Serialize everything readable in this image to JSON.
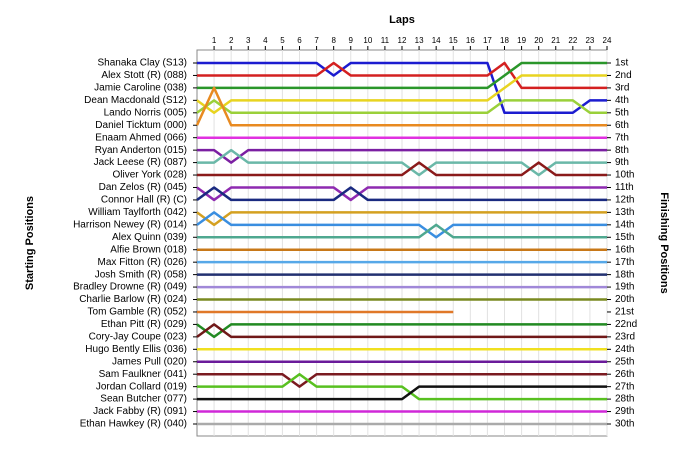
{
  "chart_data": {
    "type": "line",
    "title": "Laps",
    "ylabel": "Starting Positions",
    "y2label": "Finishing Positions",
    "x": [
      0,
      1,
      2,
      3,
      4,
      5,
      6,
      7,
      8,
      9,
      10,
      11,
      12,
      13,
      14,
      15,
      16,
      17,
      18,
      19,
      20,
      21,
      22,
      23,
      24
    ],
    "xlim": [
      0,
      24
    ],
    "xticks": [
      1,
      2,
      3,
      4,
      5,
      6,
      7,
      8,
      9,
      10,
      11,
      12,
      13,
      14,
      15,
      16,
      17,
      18,
      19,
      20,
      21,
      22,
      23,
      24
    ],
    "ylim": [
      1,
      30
    ],
    "reverse_y": true,
    "grid": true,
    "yticks": [
      {
        "value": 1,
        "label": "1st"
      },
      {
        "value": 2,
        "label": "2nd"
      },
      {
        "value": 3,
        "label": "3rd"
      },
      {
        "value": 4,
        "label": "4th"
      },
      {
        "value": 5,
        "label": "5th"
      },
      {
        "value": 6,
        "label": "6th"
      },
      {
        "value": 7,
        "label": "7th"
      },
      {
        "value": 8,
        "label": "8th"
      },
      {
        "value": 9,
        "label": "9th"
      },
      {
        "value": 10,
        "label": "10th"
      },
      {
        "value": 11,
        "label": "11th"
      },
      {
        "value": 12,
        "label": "12th"
      },
      {
        "value": 13,
        "label": "13th"
      },
      {
        "value": 14,
        "label": "14th"
      },
      {
        "value": 15,
        "label": "15th"
      },
      {
        "value": 16,
        "label": "16th"
      },
      {
        "value": 17,
        "label": "17th"
      },
      {
        "value": 18,
        "label": "18th"
      },
      {
        "value": 19,
        "label": "19th"
      },
      {
        "value": 20,
        "label": "20th"
      },
      {
        "value": 21,
        "label": "21st"
      },
      {
        "value": 22,
        "label": "22nd"
      },
      {
        "value": 23,
        "label": "23rd"
      },
      {
        "value": 24,
        "label": "24th"
      },
      {
        "value": 25,
        "label": "25th"
      },
      {
        "value": 26,
        "label": "26th"
      },
      {
        "value": 27,
        "label": "27th"
      },
      {
        "value": 28,
        "label": "28th"
      },
      {
        "value": 29,
        "label": "29th"
      },
      {
        "value": 30,
        "label": "30th"
      }
    ],
    "series": [
      {
        "name": "Shanaka Clay (S13)",
        "color": "#1c1cd0",
        "values": [
          1,
          1,
          1,
          1,
          1,
          1,
          1,
          1,
          2,
          1,
          1,
          1,
          1,
          1,
          1,
          1,
          1,
          1,
          5,
          5,
          5,
          5,
          5,
          4,
          4
        ]
      },
      {
        "name": "Alex Stott (R) (088)",
        "color": "#d42020",
        "values": [
          2,
          2,
          2,
          2,
          2,
          2,
          2,
          2,
          1,
          2,
          2,
          2,
          2,
          2,
          2,
          2,
          2,
          2,
          1,
          3,
          3,
          3,
          3,
          3,
          3
        ]
      },
      {
        "name": "Jamie Caroline (038)",
        "color": "#2a962a",
        "values": [
          3,
          3,
          3,
          3,
          3,
          3,
          3,
          3,
          3,
          3,
          3,
          3,
          3,
          3,
          3,
          3,
          3,
          3,
          2,
          1,
          1,
          1,
          1,
          1,
          1
        ]
      },
      {
        "name": "Dean Macdonald (S12)",
        "color": "#e8d420",
        "values": [
          4,
          5,
          4,
          4,
          4,
          4,
          4,
          4,
          4,
          4,
          4,
          4,
          4,
          4,
          4,
          4,
          4,
          4,
          3,
          2,
          2,
          2,
          2,
          2,
          2
        ]
      },
      {
        "name": "Lando Norris (005)",
        "color": "#9ad03a",
        "values": [
          5,
          4,
          5,
          5,
          5,
          5,
          5,
          5,
          5,
          5,
          5,
          5,
          5,
          5,
          5,
          5,
          5,
          5,
          4,
          4,
          4,
          4,
          4,
          5,
          5
        ]
      },
      {
        "name": "Daniel Ticktum (000)",
        "color": "#e88a20",
        "values": [
          6,
          3,
          6,
          6,
          6,
          6,
          6,
          6,
          6,
          6,
          6,
          6,
          6,
          6,
          6,
          6,
          6,
          6,
          6,
          6,
          6,
          6,
          6,
          6,
          6
        ]
      },
      {
        "name": "Enaam Ahmed (066)",
        "color": "#e030e0",
        "values": [
          7,
          7,
          7,
          7,
          7,
          7,
          7,
          7,
          7,
          7,
          7,
          7,
          7,
          7,
          7,
          7,
          7,
          7,
          7,
          7,
          7,
          7,
          7,
          7,
          7
        ]
      },
      {
        "name": "Ryan Anderton (015)",
        "color": "#7b1fa2",
        "values": [
          8,
          8,
          9,
          8,
          8,
          8,
          8,
          8,
          8,
          8,
          8,
          8,
          8,
          8,
          8,
          8,
          8,
          8,
          8,
          8,
          8,
          8,
          8,
          8,
          8
        ]
      },
      {
        "name": "Jack Leese (R) (087)",
        "color": "#6ab8a8",
        "values": [
          9,
          9,
          8,
          9,
          9,
          9,
          9,
          9,
          9,
          9,
          9,
          9,
          9,
          10,
          9,
          9,
          9,
          9,
          9,
          9,
          10,
          9,
          9,
          9,
          9
        ]
      },
      {
        "name": "Oliver York (028)",
        "color": "#8a1a1a",
        "values": [
          10,
          10,
          10,
          10,
          10,
          10,
          10,
          10,
          10,
          10,
          10,
          10,
          10,
          9,
          10,
          10,
          10,
          10,
          10,
          10,
          9,
          10,
          10,
          10,
          10
        ]
      },
      {
        "name": "Dan Zelos (R) (045)",
        "color": "#8e2ab0",
        "values": [
          11,
          12,
          11,
          11,
          11,
          11,
          11,
          11,
          11,
          12,
          11,
          11,
          11,
          11,
          11,
          11,
          11,
          11,
          11,
          11,
          11,
          11,
          11,
          11,
          11
        ]
      },
      {
        "name": "Connor Hall (R) (C)",
        "color": "#1a2a80",
        "values": [
          12,
          11,
          12,
          12,
          12,
          12,
          12,
          12,
          12,
          11,
          12,
          12,
          12,
          12,
          12,
          12,
          12,
          12,
          12,
          12,
          12,
          12,
          12,
          12,
          12
        ]
      },
      {
        "name": "William Taylforth (042)",
        "color": "#d4a020",
        "values": [
          13,
          14,
          13,
          13,
          13,
          13,
          13,
          13,
          13,
          13,
          13,
          13,
          13,
          13,
          13,
          13,
          13,
          13,
          13,
          13,
          13,
          13,
          13,
          13,
          13
        ]
      },
      {
        "name": "Harrison Newey (R) (014)",
        "color": "#3a8ee0",
        "values": [
          14,
          13,
          14,
          14,
          14,
          14,
          14,
          14,
          14,
          14,
          14,
          14,
          14,
          14,
          15,
          14,
          14,
          14,
          14,
          14,
          14,
          14,
          14,
          14,
          14
        ]
      },
      {
        "name": "Alex Quinn (039)",
        "color": "#4fa890",
        "values": [
          15,
          15,
          15,
          15,
          15,
          15,
          15,
          15,
          15,
          15,
          15,
          15,
          15,
          15,
          14,
          15,
          15,
          15,
          15,
          15,
          15,
          15,
          15,
          15,
          15
        ]
      },
      {
        "name": "Alfie Brown (018)",
        "color": "#c87818",
        "values": [
          16,
          16,
          16,
          16,
          16,
          16,
          16,
          16,
          16,
          16,
          16,
          16,
          16,
          16,
          16,
          16,
          16,
          16,
          16,
          16,
          16,
          16,
          16,
          16,
          16
        ]
      },
      {
        "name": "Max Fitton (R) (026)",
        "color": "#56a8e8",
        "values": [
          17,
          17,
          17,
          17,
          17,
          17,
          17,
          17,
          17,
          17,
          17,
          17,
          17,
          17,
          17,
          17,
          17,
          17,
          17,
          17,
          17,
          17,
          17,
          17,
          17
        ]
      },
      {
        "name": "Josh Smith (R) (058)",
        "color": "#223070",
        "values": [
          18,
          18,
          18,
          18,
          18,
          18,
          18,
          18,
          18,
          18,
          18,
          18,
          18,
          18,
          18,
          18,
          18,
          18,
          18,
          18,
          18,
          18,
          18,
          18,
          18
        ]
      },
      {
        "name": "Bradley Drowne (R) (049)",
        "color": "#a088d8",
        "values": [
          19,
          19,
          19,
          19,
          19,
          19,
          19,
          19,
          19,
          19,
          19,
          19,
          19,
          19,
          19,
          19,
          19,
          19,
          19,
          19,
          19,
          19,
          19,
          19,
          19
        ]
      },
      {
        "name": "Charlie Barlow (R) (024)",
        "color": "#7a8a20",
        "values": [
          20,
          20,
          20,
          20,
          20,
          20,
          20,
          20,
          20,
          20,
          20,
          20,
          20,
          20,
          20,
          20,
          20,
          20,
          20,
          20,
          20,
          20,
          20,
          20,
          20
        ]
      },
      {
        "name": "Tom Gamble (R) (052)",
        "color": "#e07828",
        "values": [
          21,
          21,
          21,
          21,
          21,
          21,
          21,
          21,
          21,
          21,
          21,
          21,
          21,
          21,
          21,
          21,
          null,
          null,
          null,
          null,
          null,
          null,
          null,
          null,
          null
        ]
      },
      {
        "name": "Ethan Pitt  (R) (029)",
        "color": "#228a22",
        "values": [
          22,
          23,
          22,
          22,
          22,
          22,
          22,
          22,
          22,
          22,
          22,
          22,
          22,
          22,
          22,
          22,
          22,
          22,
          22,
          22,
          22,
          22,
          22,
          22,
          22
        ]
      },
      {
        "name": "Cory-Jay Coupe (023)",
        "color": "#701818",
        "values": [
          23,
          22,
          23,
          23,
          23,
          23,
          23,
          23,
          23,
          23,
          23,
          23,
          23,
          23,
          23,
          23,
          23,
          23,
          23,
          23,
          23,
          23,
          23,
          23,
          23
        ]
      },
      {
        "name": "Hugo Bently Ellis (036)",
        "color": "#f0e020",
        "values": [
          24,
          24,
          24,
          24,
          24,
          24,
          24,
          24,
          24,
          24,
          24,
          24,
          24,
          24,
          24,
          24,
          24,
          24,
          24,
          24,
          24,
          24,
          24,
          24,
          24
        ]
      },
      {
        "name": "James Pull (020)",
        "color": "#6a1a9a",
        "values": [
          25,
          25,
          25,
          25,
          25,
          25,
          25,
          25,
          25,
          25,
          25,
          25,
          25,
          25,
          25,
          25,
          25,
          25,
          25,
          25,
          25,
          25,
          25,
          25,
          25
        ]
      },
      {
        "name": "Sam Faulkner (041)",
        "color": "#7a1a20",
        "values": [
          26,
          26,
          26,
          26,
          26,
          26,
          27,
          26,
          26,
          26,
          26,
          26,
          26,
          26,
          26,
          26,
          26,
          26,
          26,
          26,
          26,
          26,
          26,
          26,
          26
        ]
      },
      {
        "name": "Jordan Collard (019)",
        "color": "#58c020",
        "values": [
          27,
          27,
          27,
          27,
          27,
          27,
          26,
          27,
          27,
          27,
          27,
          27,
          27,
          28,
          28,
          28,
          28,
          28,
          28,
          28,
          28,
          28,
          28,
          28,
          28
        ]
      },
      {
        "name": "Sean Butcher (077)",
        "color": "#111111",
        "values": [
          28,
          28,
          28,
          28,
          28,
          28,
          28,
          28,
          28,
          28,
          28,
          28,
          28,
          27,
          27,
          27,
          27,
          27,
          27,
          27,
          27,
          27,
          27,
          27,
          27
        ]
      },
      {
        "name": "Jack Fabby (R) (091)",
        "color": "#d028d8",
        "values": [
          29,
          29,
          29,
          29,
          29,
          29,
          29,
          29,
          29,
          29,
          29,
          29,
          29,
          29,
          29,
          29,
          29,
          29,
          29,
          29,
          29,
          29,
          29,
          29,
          29
        ]
      },
      {
        "name": "Ethan Hawkey (R) (040)",
        "color": "#aaaaaa",
        "values": [
          30,
          30,
          30,
          30,
          30,
          30,
          30,
          30,
          30,
          30,
          30,
          30,
          30,
          30,
          30,
          30,
          30,
          30,
          30,
          30,
          30,
          30,
          30,
          30,
          30
        ]
      }
    ]
  }
}
